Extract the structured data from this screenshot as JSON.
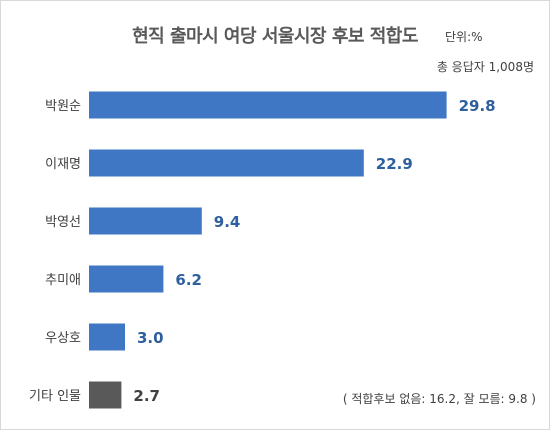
{
  "chart_data": {
    "type": "bar",
    "orientation": "horizontal",
    "title": "현직 출마시 여당 서울시장 후보 적합도",
    "unit_label": "단위:%",
    "respondents": "총 응답자 1,008명",
    "note": "( 적합후보 없음: 16.2, 잘 모름: 9.8 )",
    "categories": [
      "박원순",
      "이재명",
      "박영선",
      "추미애",
      "우상호",
      "기타 인물"
    ],
    "values": [
      29.8,
      22.9,
      9.4,
      6.2,
      3.0,
      2.7
    ],
    "value_labels": [
      "29.8",
      "22.9",
      "9.4",
      "6.2",
      "3.0",
      "2.7"
    ],
    "colors": [
      "#3f77c4",
      "#3f77c4",
      "#3f77c4",
      "#3f77c4",
      "#3f77c4",
      "#595959"
    ],
    "label_colors": [
      "#2e5f9e",
      "#2e5f9e",
      "#2e5f9e",
      "#2e5f9e",
      "#2e5f9e",
      "#404040"
    ],
    "xlim": [
      0,
      30
    ],
    "grid": false,
    "legend": false
  }
}
